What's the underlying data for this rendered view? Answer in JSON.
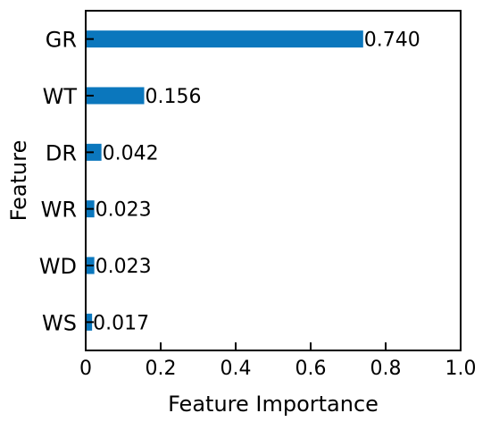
{
  "chart_data": {
    "type": "bar",
    "orientation": "horizontal",
    "title": "",
    "xlabel": "Feature Importance",
    "ylabel": "Feature",
    "xlim": [
      0,
      1.0
    ],
    "xticks": [
      "0",
      "0.2",
      "0.4",
      "0.6",
      "0.8",
      "1.0"
    ],
    "xtick_values": [
      0,
      0.2,
      0.4,
      0.6,
      0.8,
      1.0
    ],
    "grid": false,
    "legend": "none",
    "bar_color": "#0b77bd",
    "categories": [
      "GR",
      "WT",
      "DR",
      "WR",
      "WD",
      "WS"
    ],
    "values": [
      0.74,
      0.156,
      0.042,
      0.023,
      0.023,
      0.017
    ],
    "value_labels": [
      "0.740",
      "0.156",
      "0.042",
      "0.023",
      "0.023",
      "0.017"
    ]
  }
}
